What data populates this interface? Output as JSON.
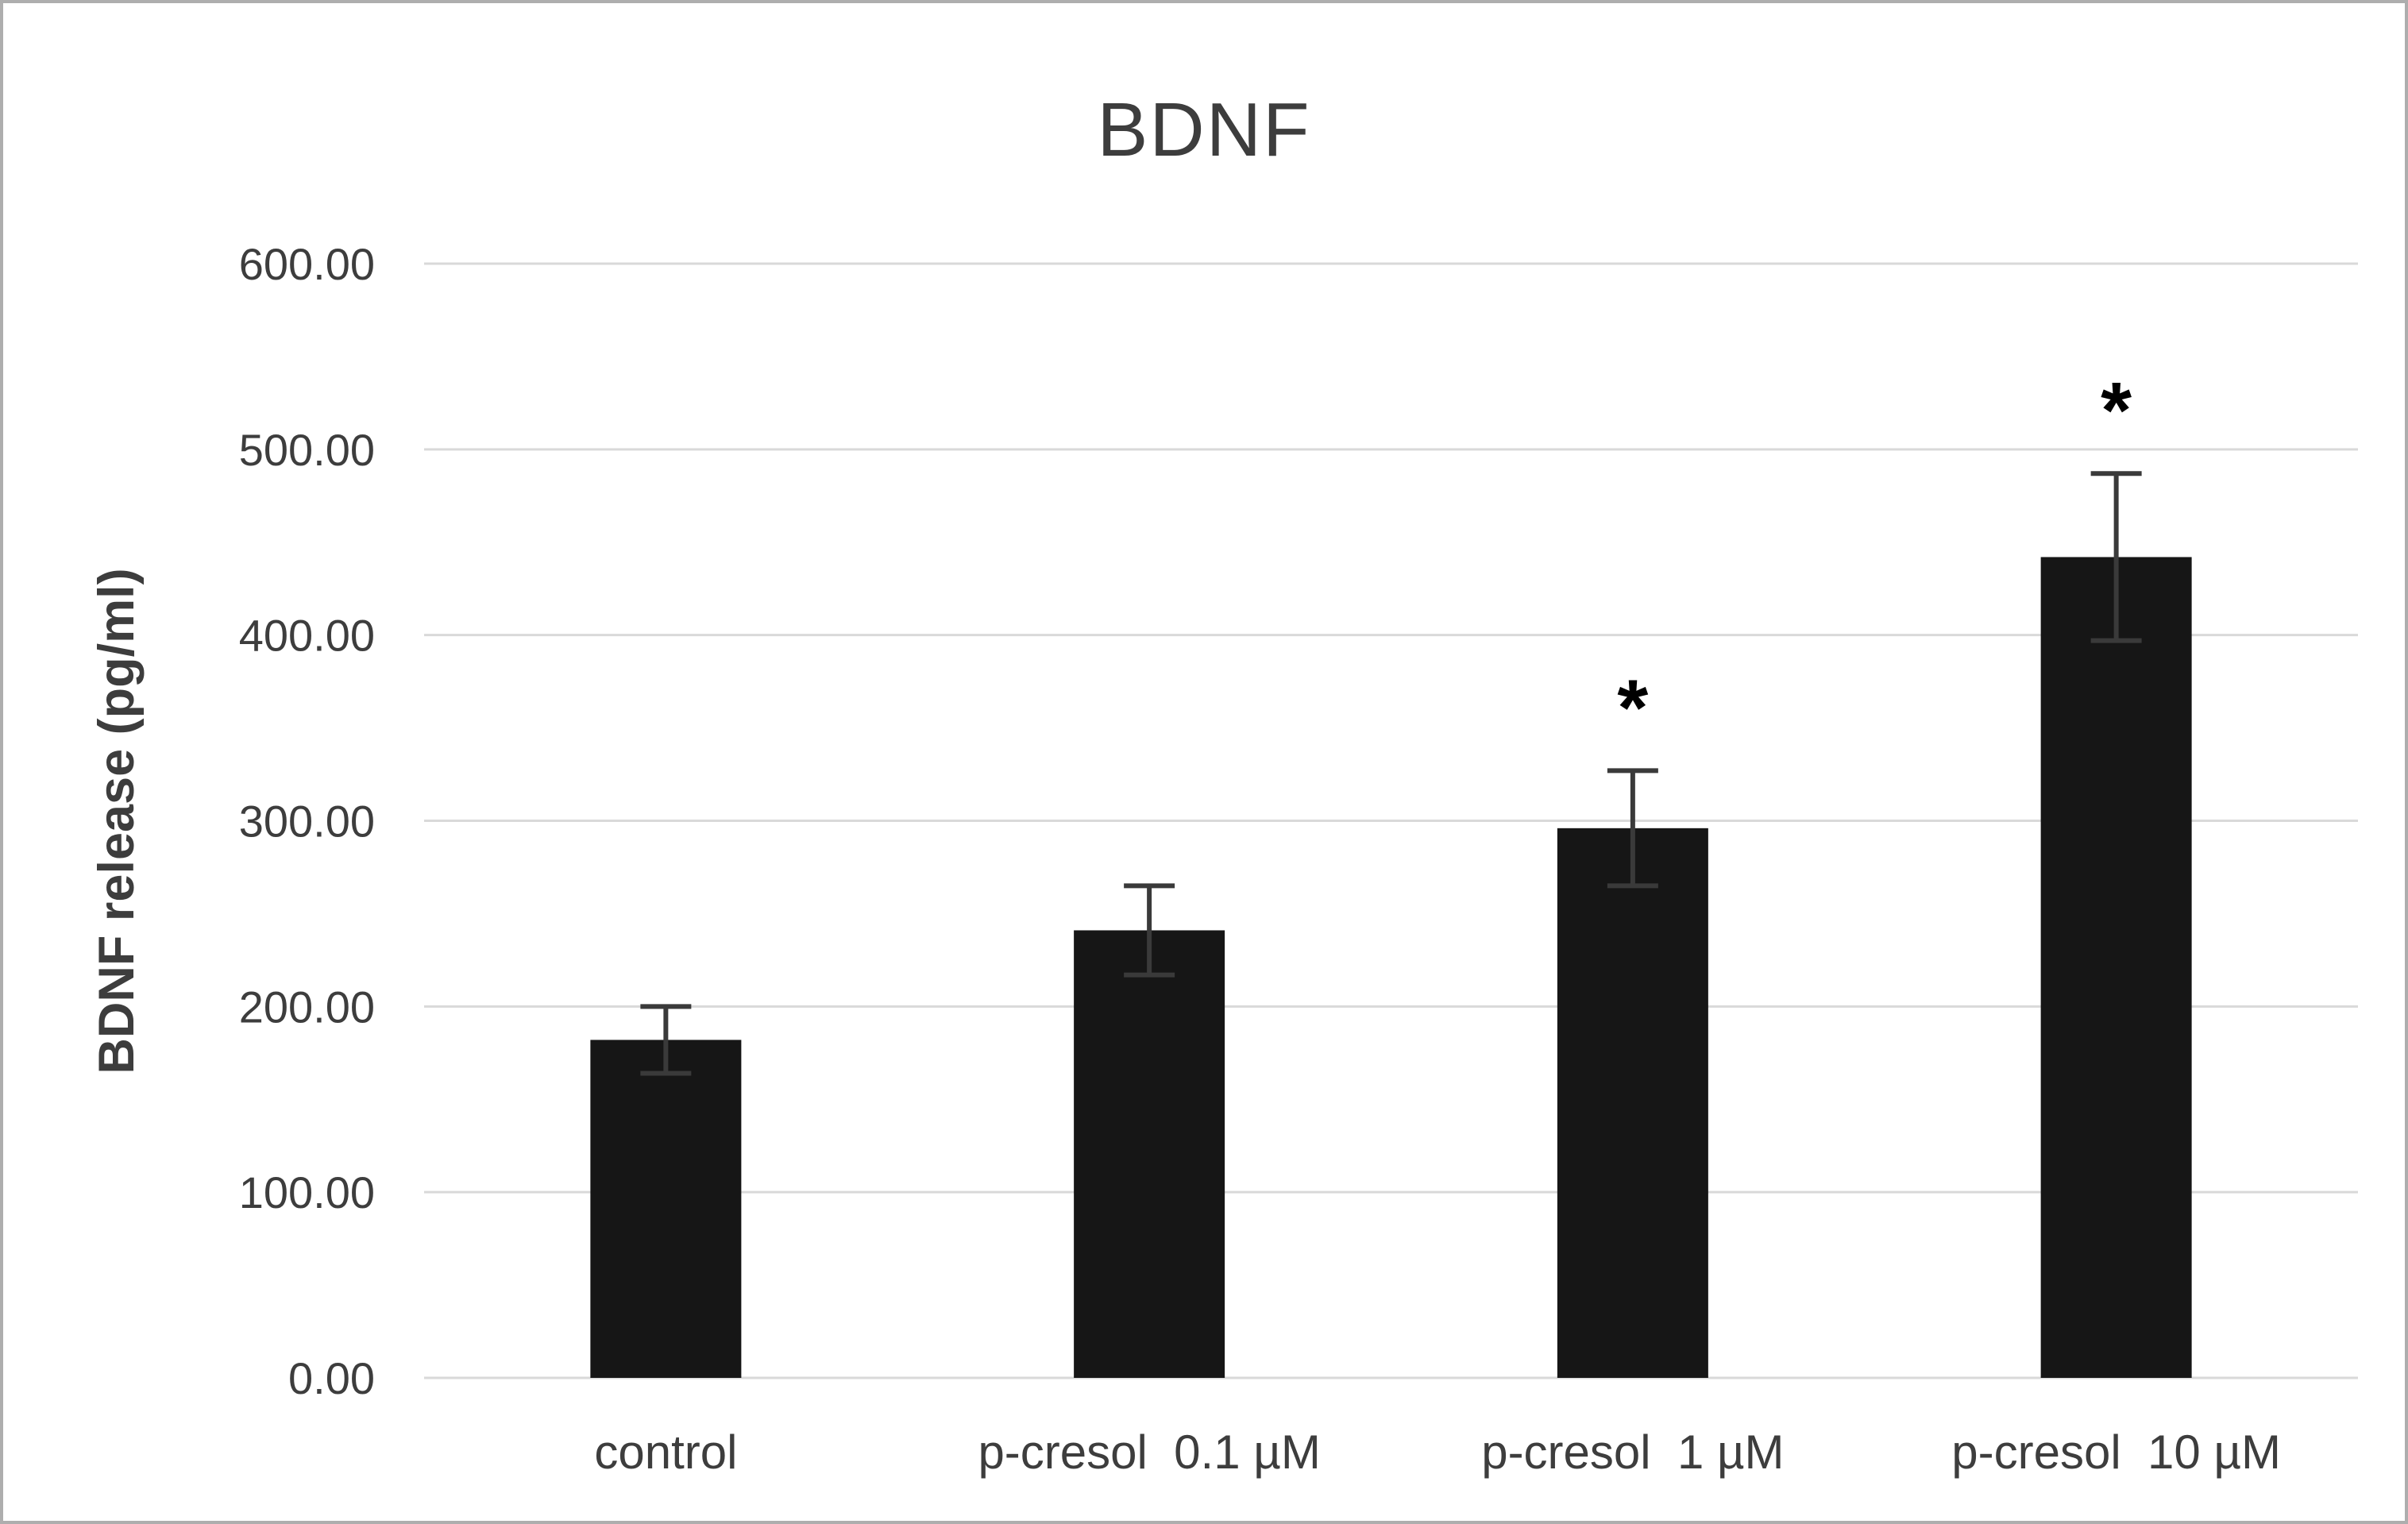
{
  "chart_data": {
    "type": "bar",
    "title": "BDNF",
    "xlabel": "",
    "ylabel": "BDNF release (pg/ml)",
    "categories": [
      "control",
      "p-cresol  0.1 µM",
      "p-cresol  1 µM",
      "p-cresol  10 µM"
    ],
    "values": [
      182,
      241,
      296,
      442
    ],
    "error_bars": [
      18,
      24,
      31,
      45
    ],
    "significance_marks": [
      false,
      false,
      true,
      true
    ],
    "significance_symbol": "*",
    "ylim": [
      0,
      600
    ],
    "ytick_step": 100,
    "ytick_labels": [
      "0.00",
      "100.00",
      "200.00",
      "300.00",
      "400.00",
      "500.00",
      "600.00"
    ],
    "grid": true,
    "legend": "none",
    "colors": {
      "bar": "#161616",
      "gridline": "#d9d9d9",
      "axis_text": "#3d3d3d",
      "error_bar": "#3a3a3a",
      "asterisk": "#000000",
      "figure_border": "#aeaeae",
      "background": "#ffffff"
    }
  }
}
